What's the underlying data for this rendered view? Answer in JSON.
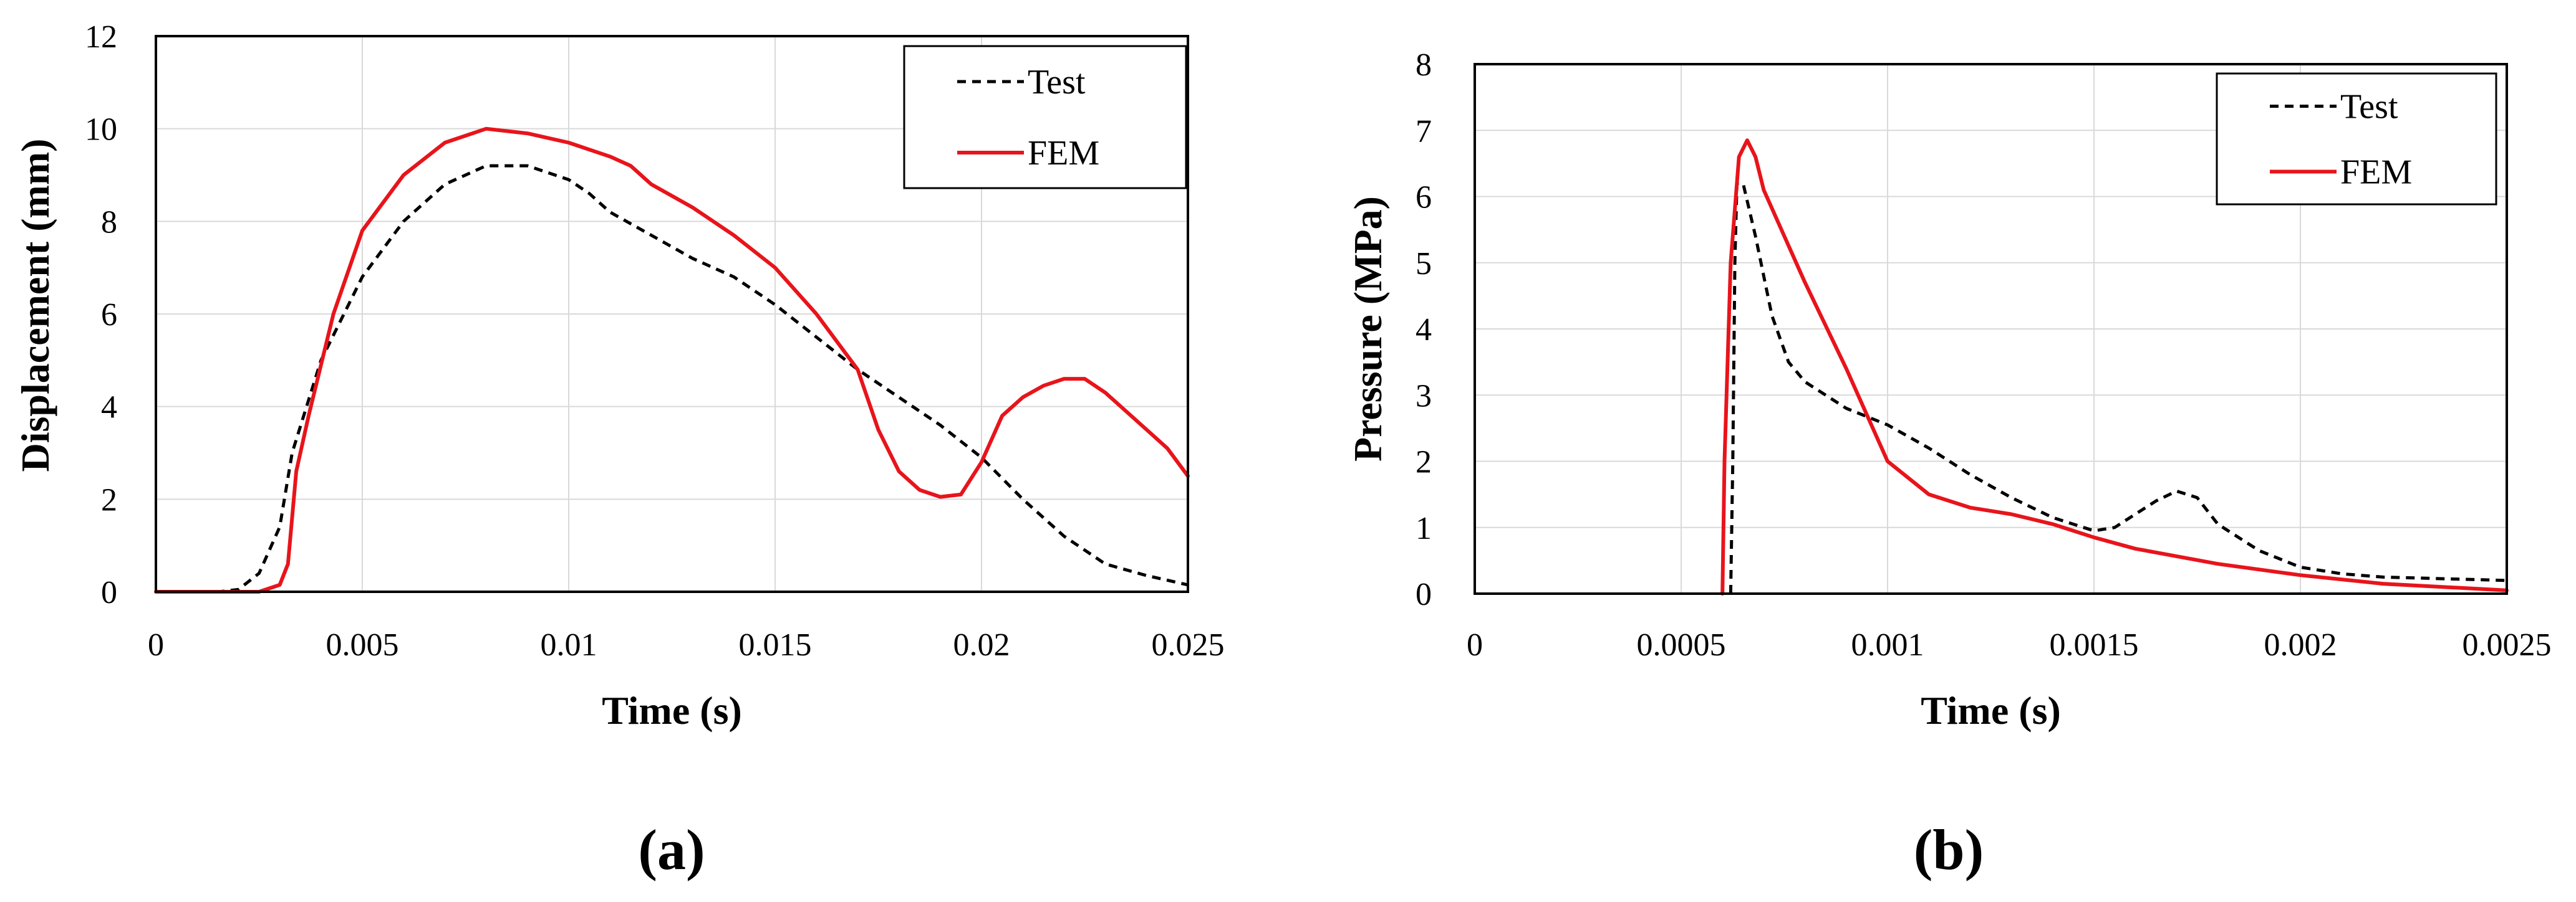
{
  "colors": {
    "test": "#000000",
    "fem": "#e8141b",
    "grid": "#d9d9d9"
  },
  "chart_data": [
    {
      "type": "line",
      "panel_label": "(a)",
      "title": "",
      "xlabel": "Time (s)",
      "ylabel": "Displacement (mm)",
      "xlim": [
        0,
        0.025
      ],
      "ylim": [
        0,
        12
      ],
      "xticks": [
        0,
        0.005,
        0.01,
        0.015,
        0.02,
        0.025
      ],
      "xtick_labels": [
        "0",
        "0.005",
        "0.01",
        "0.015",
        "0.02",
        "0.025"
      ],
      "yticks": [
        0,
        2,
        4,
        6,
        8,
        10,
        12
      ],
      "ytick_labels": [
        "0",
        "2",
        "4",
        "6",
        "8",
        "10",
        "12"
      ],
      "grid": true,
      "legend": "top-right",
      "series": [
        {
          "name": "Test",
          "style": "dashed",
          "color_key": "test",
          "points": [
            [
              0,
              0
            ],
            [
              0.0015,
              0
            ],
            [
              0.002,
              0.05
            ],
            [
              0.0025,
              0.4
            ],
            [
              0.003,
              1.4
            ],
            [
              0.0033,
              3.0
            ],
            [
              0.004,
              5.0
            ],
            [
              0.005,
              6.8
            ],
            [
              0.006,
              8.0
            ],
            [
              0.007,
              8.8
            ],
            [
              0.008,
              9.2
            ],
            [
              0.009,
              9.2
            ],
            [
              0.01,
              8.9
            ],
            [
              0.0105,
              8.6
            ],
            [
              0.011,
              8.2
            ],
            [
              0.012,
              7.7
            ],
            [
              0.013,
              7.2
            ],
            [
              0.014,
              6.8
            ],
            [
              0.015,
              6.2
            ],
            [
              0.016,
              5.5
            ],
            [
              0.017,
              4.8
            ],
            [
              0.018,
              4.2
            ],
            [
              0.019,
              3.6
            ],
            [
              0.02,
              2.9
            ],
            [
              0.021,
              2.0
            ],
            [
              0.022,
              1.2
            ],
            [
              0.023,
              0.6
            ],
            [
              0.024,
              0.35
            ],
            [
              0.025,
              0.15
            ]
          ]
        },
        {
          "name": "FEM",
          "style": "solid",
          "color_key": "fem",
          "points": [
            [
              0,
              0
            ],
            [
              0.0025,
              0
            ],
            [
              0.003,
              0.15
            ],
            [
              0.0032,
              0.6
            ],
            [
              0.0034,
              2.6
            ],
            [
              0.0037,
              3.8
            ],
            [
              0.0043,
              6.0
            ],
            [
              0.005,
              7.8
            ],
            [
              0.006,
              9.0
            ],
            [
              0.007,
              9.7
            ],
            [
              0.008,
              10.0
            ],
            [
              0.009,
              9.9
            ],
            [
              0.01,
              9.7
            ],
            [
              0.011,
              9.4
            ],
            [
              0.0115,
              9.2
            ],
            [
              0.012,
              8.8
            ],
            [
              0.013,
              8.3
            ],
            [
              0.014,
              7.7
            ],
            [
              0.015,
              7.0
            ],
            [
              0.016,
              6.0
            ],
            [
              0.017,
              4.8
            ],
            [
              0.0175,
              3.5
            ],
            [
              0.018,
              2.6
            ],
            [
              0.0185,
              2.2
            ],
            [
              0.019,
              2.05
            ],
            [
              0.0195,
              2.1
            ],
            [
              0.02,
              2.8
            ],
            [
              0.0205,
              3.8
            ],
            [
              0.021,
              4.2
            ],
            [
              0.0215,
              4.45
            ],
            [
              0.022,
              4.6
            ],
            [
              0.0225,
              4.6
            ],
            [
              0.023,
              4.3
            ],
            [
              0.024,
              3.5
            ],
            [
              0.0245,
              3.1
            ],
            [
              0.025,
              2.5
            ]
          ]
        }
      ]
    },
    {
      "type": "line",
      "panel_label": "(b)",
      "title": "",
      "xlabel": "Time (s)",
      "ylabel": "Pressure (MPa)",
      "xlim": [
        0,
        0.0025
      ],
      "ylim": [
        0,
        8
      ],
      "xticks": [
        0,
        0.0005,
        0.001,
        0.0015,
        0.002,
        0.0025
      ],
      "xtick_labels": [
        "0",
        "0.0005",
        "0.001",
        "0.0015",
        "0.002",
        "0.0025"
      ],
      "yticks": [
        0,
        1,
        2,
        3,
        4,
        5,
        6,
        7,
        8
      ],
      "ytick_labels": [
        "0",
        "1",
        "2",
        "3",
        "4",
        "5",
        "6",
        "7",
        "8"
      ],
      "grid": true,
      "legend": "top-right",
      "series": [
        {
          "name": "Test",
          "style": "dashed",
          "color_key": "test",
          "points": [
            [
              0.00062,
              0
            ],
            [
              0.000625,
              2.0
            ],
            [
              0.00063,
              5.0
            ],
            [
              0.000635,
              6.2
            ],
            [
              0.00065,
              6.2
            ],
            [
              0.00068,
              5.4
            ],
            [
              0.00072,
              4.2
            ],
            [
              0.00076,
              3.5
            ],
            [
              0.0008,
              3.2
            ],
            [
              0.0009,
              2.8
            ],
            [
              0.001,
              2.55
            ],
            [
              0.0011,
              2.2
            ],
            [
              0.0012,
              1.8
            ],
            [
              0.0013,
              1.45
            ],
            [
              0.0014,
              1.15
            ],
            [
              0.0015,
              0.95
            ],
            [
              0.00155,
              1.0
            ],
            [
              0.0016,
              1.2
            ],
            [
              0.00165,
              1.4
            ],
            [
              0.0017,
              1.55
            ],
            [
              0.00175,
              1.45
            ],
            [
              0.0018,
              1.05
            ],
            [
              0.0019,
              0.65
            ],
            [
              0.002,
              0.4
            ],
            [
              0.0021,
              0.3
            ],
            [
              0.0022,
              0.25
            ],
            [
              0.0025,
              0.2
            ]
          ]
        },
        {
          "name": "FEM",
          "style": "solid",
          "color_key": "fem",
          "points": [
            [
              0.0006,
              0
            ],
            [
              0.000605,
              2.0
            ],
            [
              0.00062,
              5.0
            ],
            [
              0.00064,
              6.6
            ],
            [
              0.00066,
              6.85
            ],
            [
              0.00068,
              6.6
            ],
            [
              0.0007,
              6.1
            ],
            [
              0.00075,
              5.4
            ],
            [
              0.0008,
              4.7
            ],
            [
              0.0009,
              3.4
            ],
            [
              0.001,
              2.0
            ],
            [
              0.0011,
              1.5
            ],
            [
              0.0012,
              1.3
            ],
            [
              0.0013,
              1.2
            ],
            [
              0.0014,
              1.05
            ],
            [
              0.0015,
              0.85
            ],
            [
              0.0016,
              0.68
            ],
            [
              0.0018,
              0.45
            ],
            [
              0.002,
              0.28
            ],
            [
              0.0022,
              0.15
            ],
            [
              0.0025,
              0.05
            ]
          ]
        }
      ]
    }
  ]
}
